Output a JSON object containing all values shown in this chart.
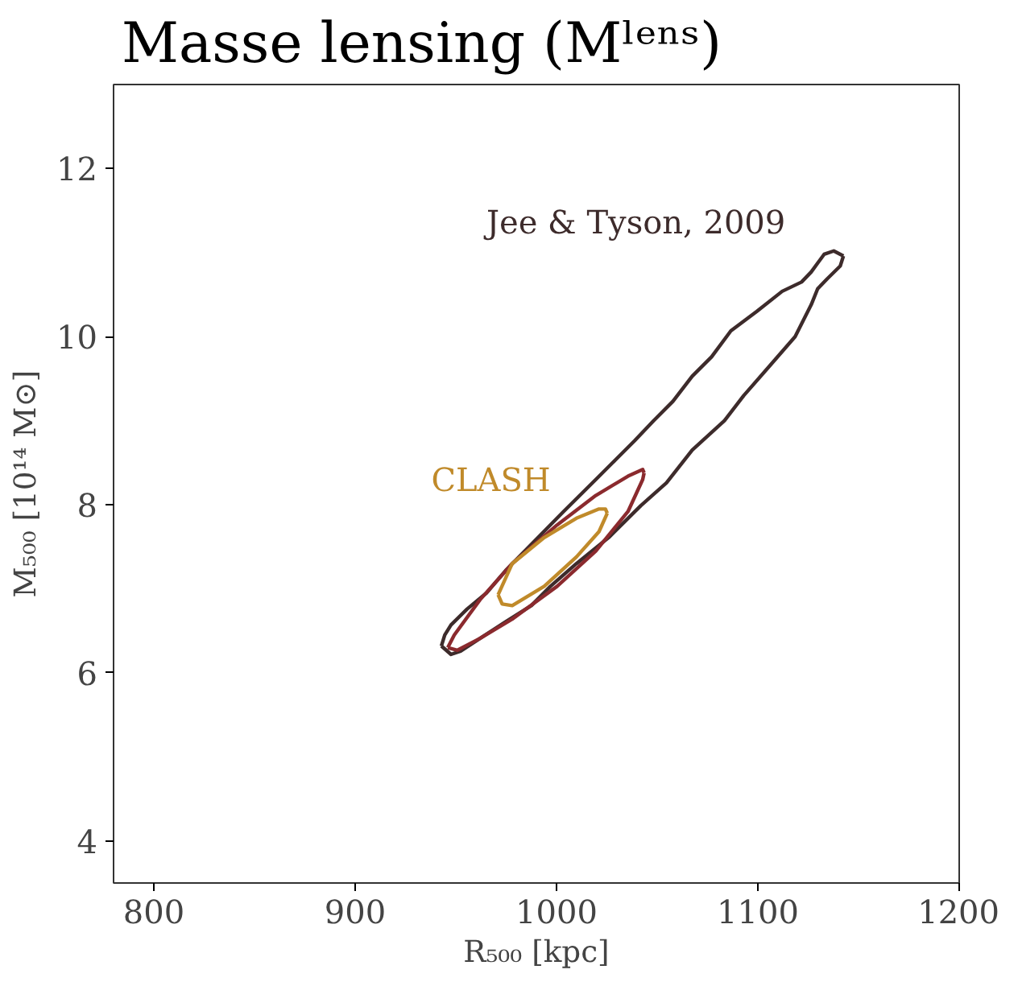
{
  "chart_data": {
    "type": "line",
    "title": "Masse lensing (Mˡᵉⁿˢ)",
    "xlabel": "R₅₀₀ [kpc]",
    "ylabel": "M₅₀₀ [10¹⁴ M⊙]",
    "xlim": [
      780,
      1200
    ],
    "ylim": [
      3.5,
      13
    ],
    "xticks": [
      800,
      900,
      1000,
      1100,
      1200
    ],
    "yticks": [
      4,
      6,
      8,
      10,
      12
    ],
    "grid": false,
    "legend": false,
    "marker": "none",
    "line_style": "solid",
    "series": [
      {
        "name": "Jee & Tyson, 2009",
        "color": "#3d2b2b",
        "x": [
          942.8,
          944.5,
          947.6,
          955.6,
          965.2,
          974.8,
          987.5,
          1003.5,
          1019.5,
          1029.1,
          1038.7,
          1048.2,
          1057.8,
          1067.4,
          1077,
          1086.6,
          1099.4,
          1112.1,
          1121.7,
          1126.5,
          1132.9,
          1137.7,
          1142.5
        ],
        "values": [
          6.32,
          6.45,
          6.57,
          6.76,
          6.95,
          7.22,
          7.53,
          7.92,
          8.3,
          8.53,
          8.76,
          9.0,
          9.23,
          9.53,
          9.76,
          10.07,
          10.3,
          10.54,
          10.65,
          10.77,
          10.98,
          11.02,
          10.96
        ]
      },
      {
        "color": "#3d2b2b",
        "x": [
          942.8,
          947.6,
          952.4,
          962,
          974.8,
          987.5,
          997,
          1009.9,
          1025.9,
          1041.9,
          1054.6,
          1067.4,
          1083.4,
          1093,
          1105.8,
          1118.5,
          1126.5,
          1129.7,
          1134.5,
          1140.9,
          1142.5
        ],
        "values": [
          6.32,
          6.22,
          6.26,
          6.41,
          6.61,
          6.8,
          7.03,
          7.3,
          7.61,
          7.99,
          8.26,
          8.65,
          9.0,
          9.3,
          9.65,
          10.0,
          10.38,
          10.57,
          10.69,
          10.84,
          10.96
        ]
      },
      {
        "color": "#8b2a2e",
        "x": [
          946,
          949.2,
          962,
          978,
          1000.3,
          1019.5,
          1035.5,
          1042.8,
          1043.5
        ],
        "values": [
          6.3,
          6.45,
          6.87,
          7.3,
          7.76,
          8.11,
          8.34,
          8.42,
          8.38
        ]
      },
      {
        "color": "#8b2a2e",
        "x": [
          946,
          950.8,
          962,
          978,
          1000.3,
          1019.5,
          1035.5,
          1042.8,
          1043.5
        ],
        "values": [
          6.3,
          6.27,
          6.41,
          6.64,
          7.03,
          7.45,
          7.92,
          8.3,
          8.38
        ]
      },
      {
        "name": "CLASH",
        "color": "#c08a2a",
        "x": [
          971,
          978,
          993.9,
          1009.9,
          1021.1,
          1024.3,
          1025.2
        ],
        "values": [
          6.93,
          7.3,
          7.61,
          7.84,
          7.95,
          7.95,
          7.9
        ]
      },
      {
        "color": "#c08a2a",
        "x": [
          971,
          973,
          978,
          993.9,
          1009.9,
          1021.1,
          1025.2
        ],
        "values": [
          6.93,
          6.82,
          6.8,
          7.03,
          7.38,
          7.68,
          7.9
        ]
      }
    ]
  }
}
